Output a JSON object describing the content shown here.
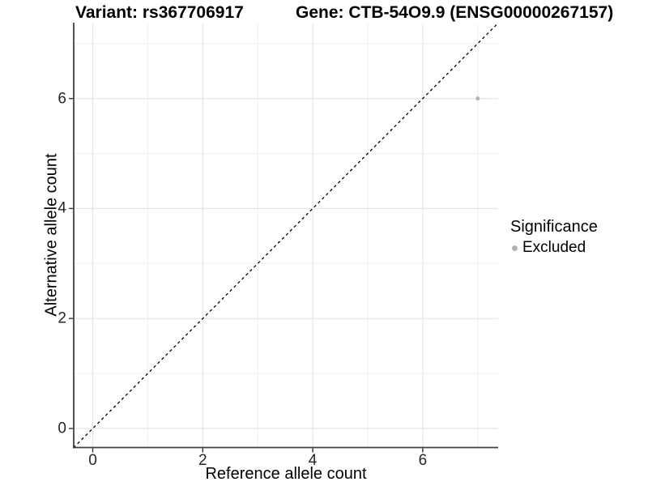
{
  "header": {
    "variant_title": "Variant: rs367706917",
    "gene_title": "Gene: CTB-54O9.9 (ENSG00000267157)"
  },
  "chart_data": {
    "type": "scatter",
    "title": "Variant: rs367706917  |  Gene: CTB-54O9.9 (ENSG00000267157)",
    "xlabel": "Reference allele count",
    "ylabel": "Alternative allele count",
    "xlim": [
      -0.35,
      7.35
    ],
    "ylim": [
      -0.35,
      7.35
    ],
    "xticks": [
      0,
      2,
      4,
      6
    ],
    "yticks": [
      0,
      2,
      4,
      6
    ],
    "xtick_labels": [
      "0",
      "2",
      "4",
      "6"
    ],
    "ytick_labels": [
      "0",
      "2",
      "4",
      "6"
    ],
    "minor_xticks": [
      1,
      3,
      5,
      7
    ],
    "minor_yticks": [
      1,
      3,
      5,
      7
    ],
    "grid": true,
    "series": [
      {
        "name": "Excluded",
        "color": "#b3b3b3",
        "points": [
          [
            7,
            6
          ]
        ]
      }
    ],
    "reference_line": {
      "type": "identity y=x",
      "style": "dashed",
      "color": "#000000",
      "from": -0.35,
      "to": 7.35
    },
    "legend": {
      "title": "Significance",
      "position": "right",
      "items": [
        {
          "label": "Excluded",
          "color": "#b3b3b3"
        }
      ]
    },
    "colors": {
      "grid_major": "#e4e4e4",
      "grid_minor": "#eeeeee",
      "axis_line": "#404040",
      "tick_mark": "#333333",
      "point": "#b3b3b3",
      "dash_line": "#000000",
      "background": "#ffffff"
    }
  }
}
